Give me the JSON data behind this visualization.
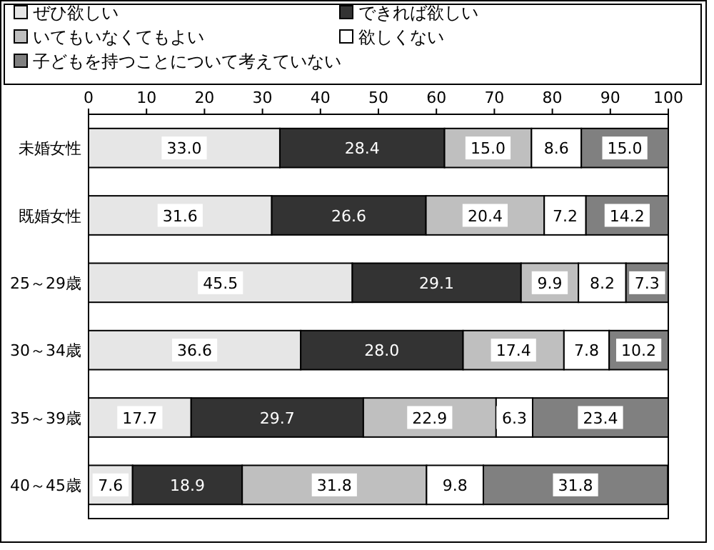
{
  "chart_data": {
    "type": "bar",
    "orientation": "horizontal",
    "stacked": true,
    "legend": "top",
    "categories": [
      "未婚女性",
      "既婚女性",
      "25～29歳",
      "30～34歳",
      "35～39歳",
      "40～45歳"
    ],
    "xlim": [
      0,
      100
    ],
    "xticks": [
      0,
      10,
      20,
      30,
      40,
      50,
      60,
      70,
      80,
      90,
      100
    ],
    "series": [
      {
        "name": "ぜひ欲しい",
        "color": "#e6e6e6",
        "values": [
          33.0,
          31.6,
          45.5,
          36.6,
          17.7,
          7.6
        ],
        "value_labels": [
          "33.0",
          "31.6",
          "45.5",
          "36.6",
          "17.7",
          "7.6"
        ]
      },
      {
        "name": "できれば欲しい",
        "color": "#333333",
        "values": [
          28.4,
          26.6,
          29.1,
          28.0,
          29.7,
          18.9
        ],
        "value_labels": [
          "28.4",
          "26.6",
          "29.1",
          "28.0",
          "29.7",
          "18.9"
        ]
      },
      {
        "name": "いてもいなくてもよい",
        "color": "#bfbfbf",
        "values": [
          15.0,
          20.4,
          9.9,
          17.4,
          22.9,
          31.8
        ],
        "value_labels": [
          "15.0",
          "20.4",
          "9.9",
          "17.4",
          "22.9",
          "31.8"
        ]
      },
      {
        "name": "欲しくない",
        "color": "#ffffff",
        "values": [
          8.6,
          7.2,
          8.2,
          7.8,
          6.3,
          9.8
        ],
        "value_labels": [
          "8.6",
          "7.2",
          "8.2",
          "7.8",
          "6.3",
          "9.8"
        ]
      },
      {
        "name": "子どもを持つことについて考えていない",
        "color": "#808080",
        "values": [
          15.0,
          14.2,
          7.3,
          10.2,
          23.4,
          31.8
        ],
        "value_labels": [
          "15.0",
          "14.2",
          "7.3",
          "10.2",
          "23.4",
          "31.8"
        ]
      }
    ]
  }
}
